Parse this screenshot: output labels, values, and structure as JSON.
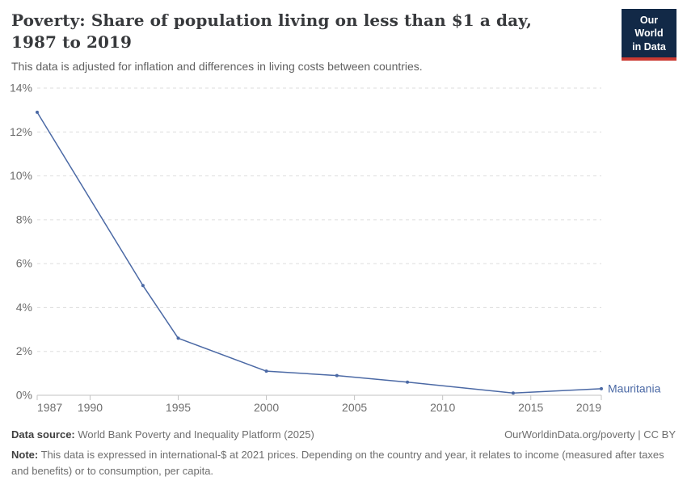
{
  "header": {
    "title": "Poverty: Share of population living on less than $1 a day, 1987 to 2019",
    "subtitle": "This data is adjusted for inflation and differences in living costs between countries.",
    "logo_line1": "Our World",
    "logo_line2": "in Data"
  },
  "chart_data": {
    "type": "line",
    "title": "Poverty: Share of population living on less than $1 a day, 1987 to 2019",
    "xlabel": "",
    "ylabel": "",
    "xlim": [
      1987,
      2019
    ],
    "ylim": [
      0,
      14
    ],
    "x_ticks": [
      1987,
      1990,
      1995,
      2000,
      2005,
      2010,
      2015,
      2019
    ],
    "y_ticks": [
      0,
      2,
      4,
      6,
      8,
      10,
      12,
      14
    ],
    "y_tick_suffix": "%",
    "grid": "horizontal-dashed",
    "legend_position": "end-of-line-label",
    "series": [
      {
        "name": "Mauritania",
        "color": "#4b69a5",
        "points": [
          {
            "x": 1987,
            "y": 12.9
          },
          {
            "x": 1993,
            "y": 5.0
          },
          {
            "x": 1995,
            "y": 2.6
          },
          {
            "x": 2000,
            "y": 1.1
          },
          {
            "x": 2004,
            "y": 0.9
          },
          {
            "x": 2008,
            "y": 0.6
          },
          {
            "x": 2014,
            "y": 0.1
          },
          {
            "x": 2019,
            "y": 0.3
          }
        ]
      }
    ]
  },
  "colors": {
    "line": "#4b69a5",
    "gridline": "#dedede",
    "axis": "#c3c3c3",
    "tick_label": "#6e6e6e",
    "logo_bg": "#122947",
    "logo_accent": "#cb3a32"
  },
  "footer": {
    "datasource_label": "Data source:",
    "datasource_text": " World Bank Poverty and Inequality Platform (2025)",
    "license": "OurWorldinData.org/poverty | CC BY",
    "note_label": "Note:",
    "note_text": " This data is expressed in international-$ at 2021 prices. Depending on the country and year, it relates to income (measured after taxes and benefits) or to consumption, per capita."
  }
}
